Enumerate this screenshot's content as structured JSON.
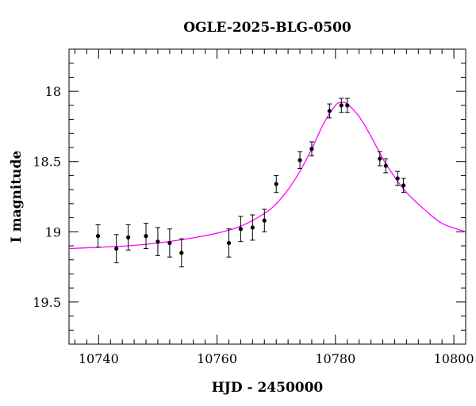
{
  "chart_data": {
    "type": "scatter",
    "title": "OGLE-2025-BLG-0500",
    "xlabel": "HJD - 2450000",
    "ylabel": "I magnitude",
    "xlim": [
      10735,
      10802
    ],
    "ylim": [
      19.8,
      17.7
    ],
    "y_inverted": true,
    "grid": false,
    "x_ticks": [
      10740,
      10760,
      10780,
      10800
    ],
    "x_tick_labels": [
      "10740",
      "10760",
      "10780",
      "10800"
    ],
    "x_minor_step": 2,
    "y_ticks": [
      18,
      18.5,
      19,
      19.5
    ],
    "y_tick_labels": [
      "18",
      "18.5",
      "19",
      "19.5"
    ],
    "y_minor_step": 0.1,
    "series": [
      {
        "type": "scatter",
        "color": "#000000",
        "points": [
          {
            "x": 10739.9,
            "y": 19.03,
            "err": 0.08
          },
          {
            "x": 10743.0,
            "y": 19.12,
            "err": 0.1
          },
          {
            "x": 10745.0,
            "y": 19.04,
            "err": 0.09
          },
          {
            "x": 10748.0,
            "y": 19.03,
            "err": 0.09
          },
          {
            "x": 10750.0,
            "y": 19.07,
            "err": 0.1
          },
          {
            "x": 10752.0,
            "y": 19.08,
            "err": 0.1
          },
          {
            "x": 10754.0,
            "y": 19.15,
            "err": 0.1
          },
          {
            "x": 10762.0,
            "y": 19.08,
            "err": 0.1
          },
          {
            "x": 10764.0,
            "y": 18.98,
            "err": 0.09
          },
          {
            "x": 10766.0,
            "y": 18.97,
            "err": 0.09
          },
          {
            "x": 10768.0,
            "y": 18.92,
            "err": 0.08
          },
          {
            "x": 10770.0,
            "y": 18.66,
            "err": 0.06
          },
          {
            "x": 10774.0,
            "y": 18.49,
            "err": 0.06
          },
          {
            "x": 10776.0,
            "y": 18.41,
            "err": 0.05
          },
          {
            "x": 10779.0,
            "y": 18.14,
            "err": 0.05
          },
          {
            "x": 10781.0,
            "y": 18.1,
            "err": 0.05
          },
          {
            "x": 10782.0,
            "y": 18.1,
            "err": 0.05
          },
          {
            "x": 10787.5,
            "y": 18.48,
            "err": 0.05
          },
          {
            "x": 10788.5,
            "y": 18.53,
            "err": 0.05
          },
          {
            "x": 10790.5,
            "y": 18.62,
            "err": 0.05
          },
          {
            "x": 10791.5,
            "y": 18.67,
            "err": 0.05
          }
        ]
      },
      {
        "type": "line",
        "color": "#ff00ff",
        "points": [
          {
            "x": 10735,
            "y": 19.12
          },
          {
            "x": 10740,
            "y": 19.11
          },
          {
            "x": 10745,
            "y": 19.1
          },
          {
            "x": 10750,
            "y": 19.08
          },
          {
            "x": 10755,
            "y": 19.05
          },
          {
            "x": 10760,
            "y": 19.01
          },
          {
            "x": 10764,
            "y": 18.96
          },
          {
            "x": 10768,
            "y": 18.87
          },
          {
            "x": 10770,
            "y": 18.8
          },
          {
            "x": 10772,
            "y": 18.7
          },
          {
            "x": 10774,
            "y": 18.57
          },
          {
            "x": 10776,
            "y": 18.41
          },
          {
            "x": 10778,
            "y": 18.23
          },
          {
            "x": 10780,
            "y": 18.1
          },
          {
            "x": 10781,
            "y": 18.08
          },
          {
            "x": 10782,
            "y": 18.09
          },
          {
            "x": 10784,
            "y": 18.18
          },
          {
            "x": 10786,
            "y": 18.32
          },
          {
            "x": 10788,
            "y": 18.48
          },
          {
            "x": 10790,
            "y": 18.61
          },
          {
            "x": 10792,
            "y": 18.72
          },
          {
            "x": 10795,
            "y": 18.84
          },
          {
            "x": 10798,
            "y": 18.94
          },
          {
            "x": 10802,
            "y": 19.0
          }
        ]
      }
    ]
  }
}
